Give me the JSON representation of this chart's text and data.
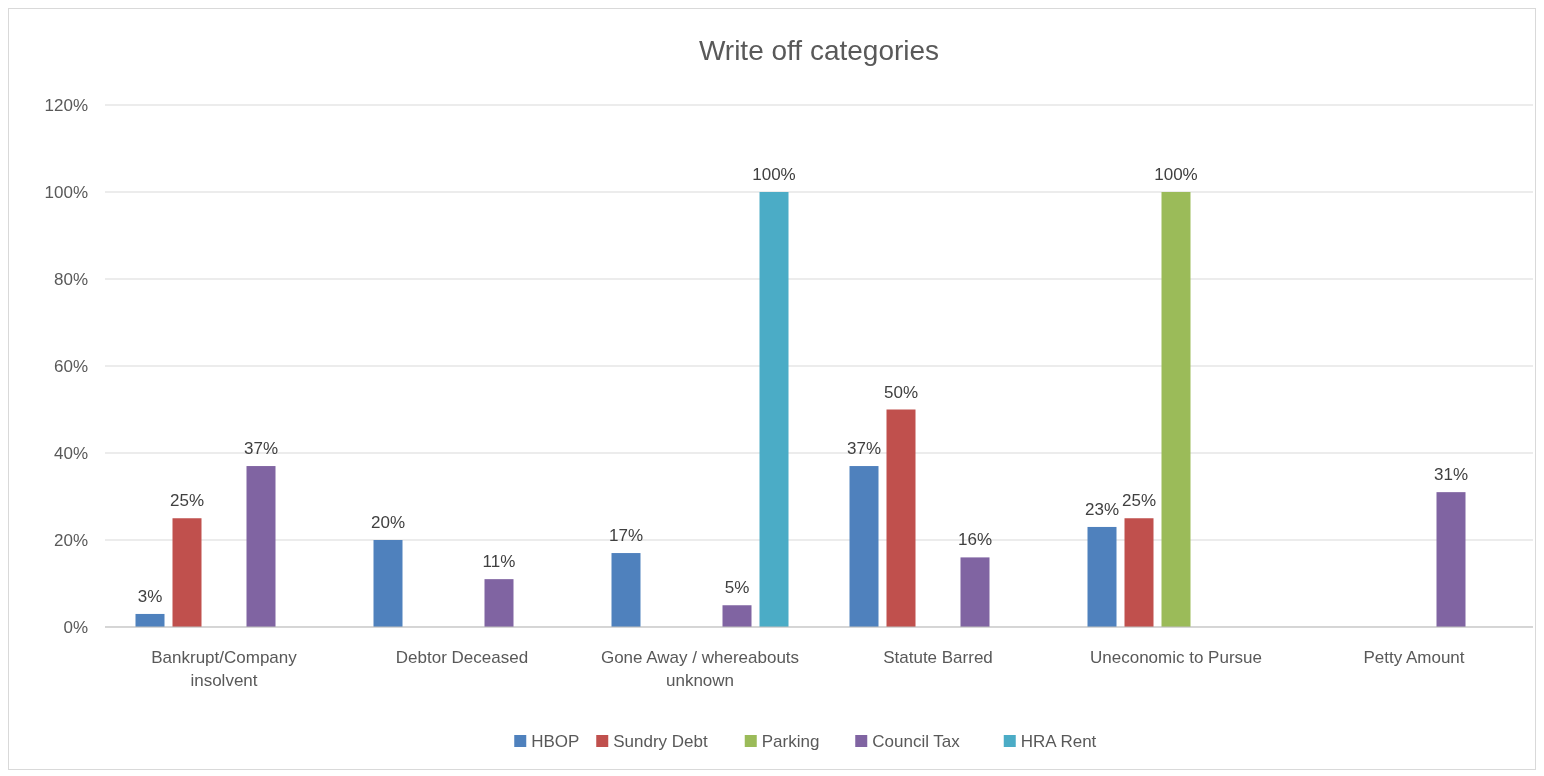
{
  "chart_data": {
    "type": "bar",
    "title": "Write off categories",
    "categories": [
      "Bankrupt/Company insolvent",
      "Debtor Deceased",
      "Gone Away / whereabouts unknown",
      "Statute Barred",
      "Uneconomic to Pursue",
      "Petty Amount"
    ],
    "series": [
      {
        "name": "HBOP",
        "color": "#4f81bd",
        "values": [
          3,
          20,
          17,
          37,
          23,
          null
        ],
        "value_labels": [
          "3%",
          "20%",
          "17%",
          "37%",
          "23%",
          null
        ]
      },
      {
        "name": "Sundry Debt",
        "color": "#c0504d",
        "values": [
          25,
          null,
          null,
          50,
          25,
          null
        ],
        "value_labels": [
          "25%",
          null,
          null,
          "50%",
          "25%",
          null
        ]
      },
      {
        "name": "Parking",
        "color": "#9bbb59",
        "values": [
          null,
          null,
          null,
          null,
          100,
          null
        ],
        "value_labels": [
          null,
          null,
          null,
          null,
          "100%",
          null
        ]
      },
      {
        "name": "Council Tax",
        "color": "#8064a2",
        "values": [
          37,
          11,
          5,
          16,
          null,
          31
        ],
        "value_labels": [
          "37%",
          "11%",
          "5%",
          "16%",
          null,
          "31%"
        ]
      },
      {
        "name": "HRA Rent",
        "color": "#4bacc6",
        "values": [
          null,
          null,
          100,
          null,
          null,
          null
        ],
        "value_labels": [
          null,
          null,
          "100%",
          null,
          null,
          null
        ]
      }
    ],
    "ylim": [
      0,
      120
    ],
    "yticks": [
      {
        "value": 0,
        "label": "0%"
      },
      {
        "value": 20,
        "label": "20%"
      },
      {
        "value": 40,
        "label": "40%"
      },
      {
        "value": 60,
        "label": "60%"
      },
      {
        "value": 80,
        "label": "80%"
      },
      {
        "value": 100,
        "label": "100%"
      },
      {
        "value": 120,
        "label": "120%"
      }
    ],
    "grid": "y",
    "legend": "bottom"
  }
}
